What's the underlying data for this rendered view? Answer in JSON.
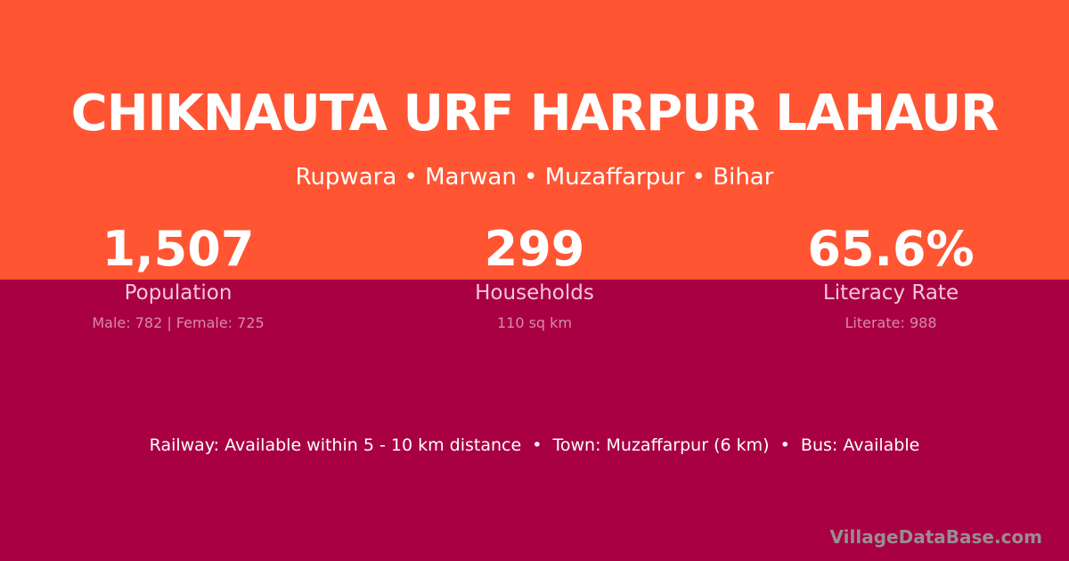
{
  "header": {
    "title": "CHIKNAUTA URF HARPUR LAHAUR",
    "subtitle": "Rupwara • Marwan • Muzaffarpur • Bihar"
  },
  "stats": [
    {
      "value": "1,507",
      "label": "Population",
      "sub": "Male: 782 | Female: 725"
    },
    {
      "value": "299",
      "label": "Households",
      "sub": "110 sq km"
    },
    {
      "value": "65.6%",
      "label": "Literacy Rate",
      "sub": "Literate: 988"
    }
  ],
  "info_line": "Railway: Available within 5 - 10 km distance  •  Town: Muzaffarpur (6 km)  •  Bus: Available",
  "brand": "VillageDataBase.com",
  "colors": {
    "top_background": "#FF5533",
    "bottom_background": "#A80042"
  }
}
